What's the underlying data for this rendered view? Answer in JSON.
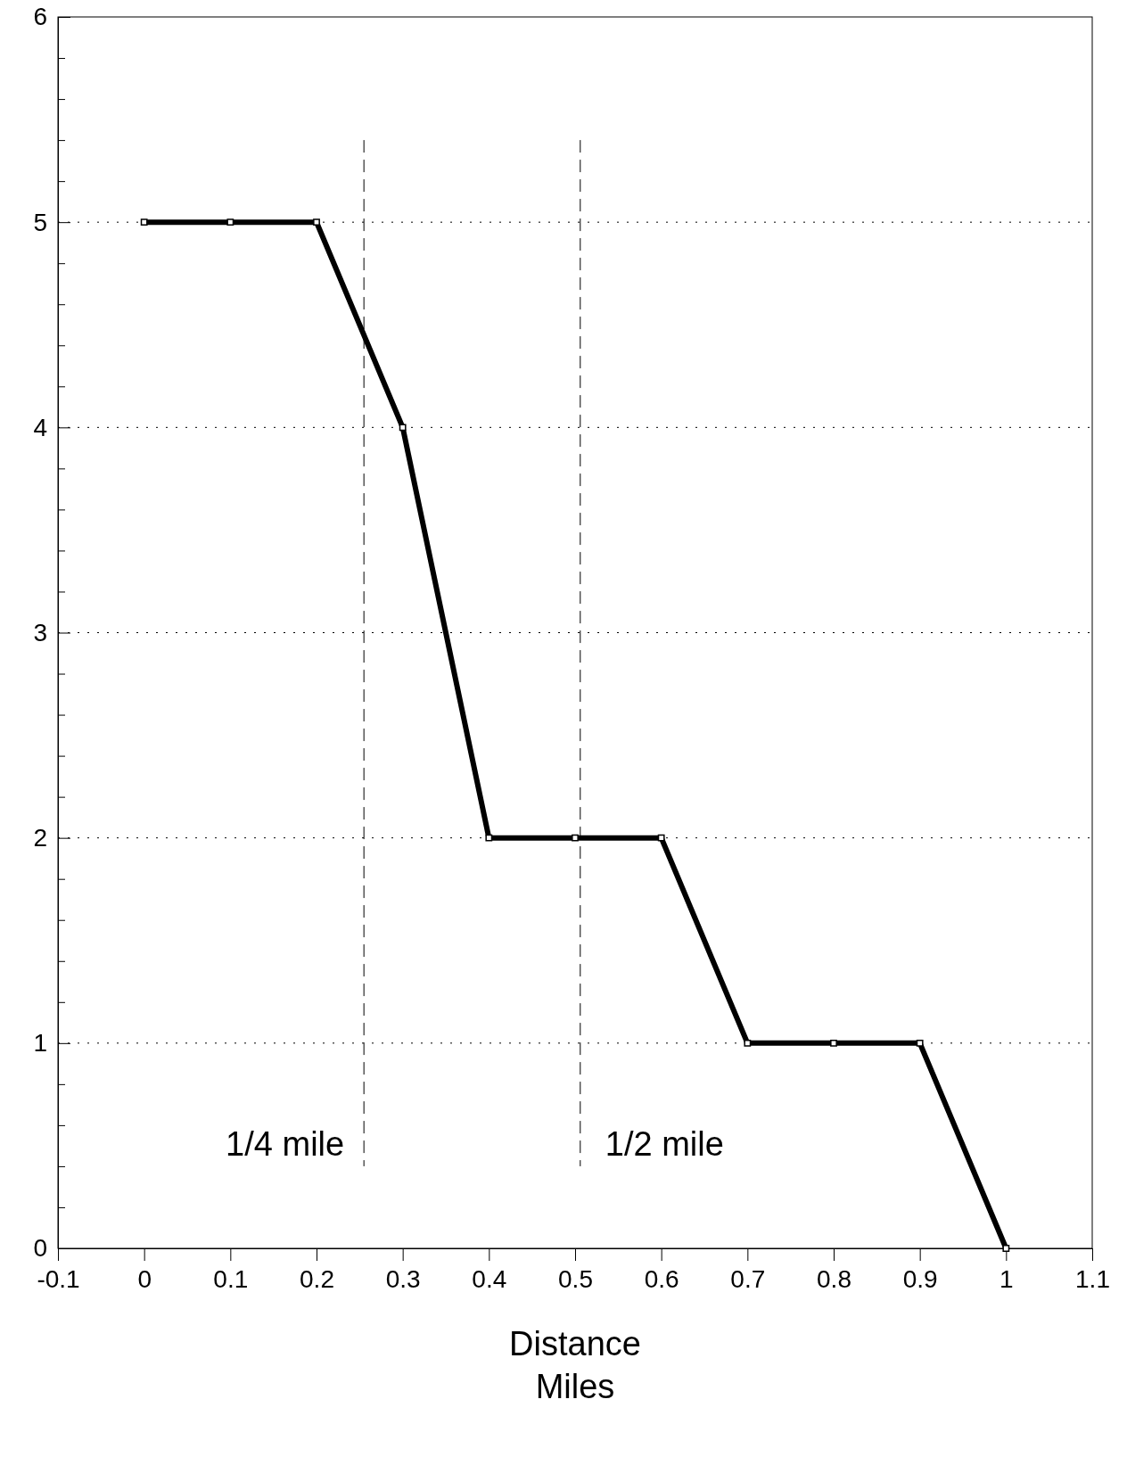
{
  "chart_data": {
    "type": "line",
    "xlabel": "Distance\nMiles",
    "x": [
      0,
      0.1,
      0.2,
      0.3,
      0.4,
      0.5,
      0.6,
      0.7,
      0.8,
      0.9,
      1
    ],
    "series": [
      {
        "color": "#000000",
        "values": [
          5,
          5,
          5,
          4,
          2,
          2,
          2,
          1,
          1,
          1,
          0
        ]
      }
    ],
    "xlim": [
      -0.1,
      1.1
    ],
    "xticks": [
      -0.1,
      0,
      0.1,
      0.2,
      0.3,
      0.4,
      0.5,
      0.6,
      0.7,
      0.8,
      0.9,
      1,
      1.1
    ],
    "ylim": [
      0,
      6
    ],
    "yticks": [
      0,
      {
        "value": 0.2,
        "label": null
      },
      {
        "value": 0.4,
        "label": null
      },
      {
        "value": 0.6,
        "label": null
      },
      {
        "value": 0.8,
        "label": null
      },
      1,
      {
        "value": 1.2,
        "label": null
      },
      {
        "value": 1.4,
        "label": null
      },
      {
        "value": 1.6,
        "label": null
      },
      {
        "value": 1.8,
        "label": null
      },
      2,
      {
        "value": 2.2,
        "label": null
      },
      {
        "value": 2.4,
        "label": null
      },
      {
        "value": 2.6,
        "label": null
      },
      {
        "value": 2.8,
        "label": null
      },
      3,
      {
        "value": 3.2,
        "label": null
      },
      {
        "value": 3.4,
        "label": null
      },
      {
        "value": 3.6,
        "label": null
      },
      {
        "value": 3.8,
        "label": null
      },
      4,
      {
        "value": 4.2,
        "label": null
      },
      {
        "value": 4.4,
        "label": null
      },
      {
        "value": 4.6,
        "label": null
      },
      {
        "value": 4.8,
        "label": null
      },
      5,
      {
        "value": 5.2,
        "label": null
      },
      {
        "value": 5.4,
        "label": null
      },
      {
        "value": 5.6,
        "label": null
      },
      {
        "value": 5.8,
        "label": null
      },
      6
    ],
    "grid": "y",
    "marker": "square",
    "line_style": "solid",
    "ref_lines": [
      {
        "axis": "x",
        "value": 0.255,
        "label": "1/4 mile",
        "line_style": "dashed"
      },
      {
        "axis": "x",
        "value": 0.506,
        "label": "1/2 mile",
        "line_style": "dashed"
      }
    ]
  }
}
